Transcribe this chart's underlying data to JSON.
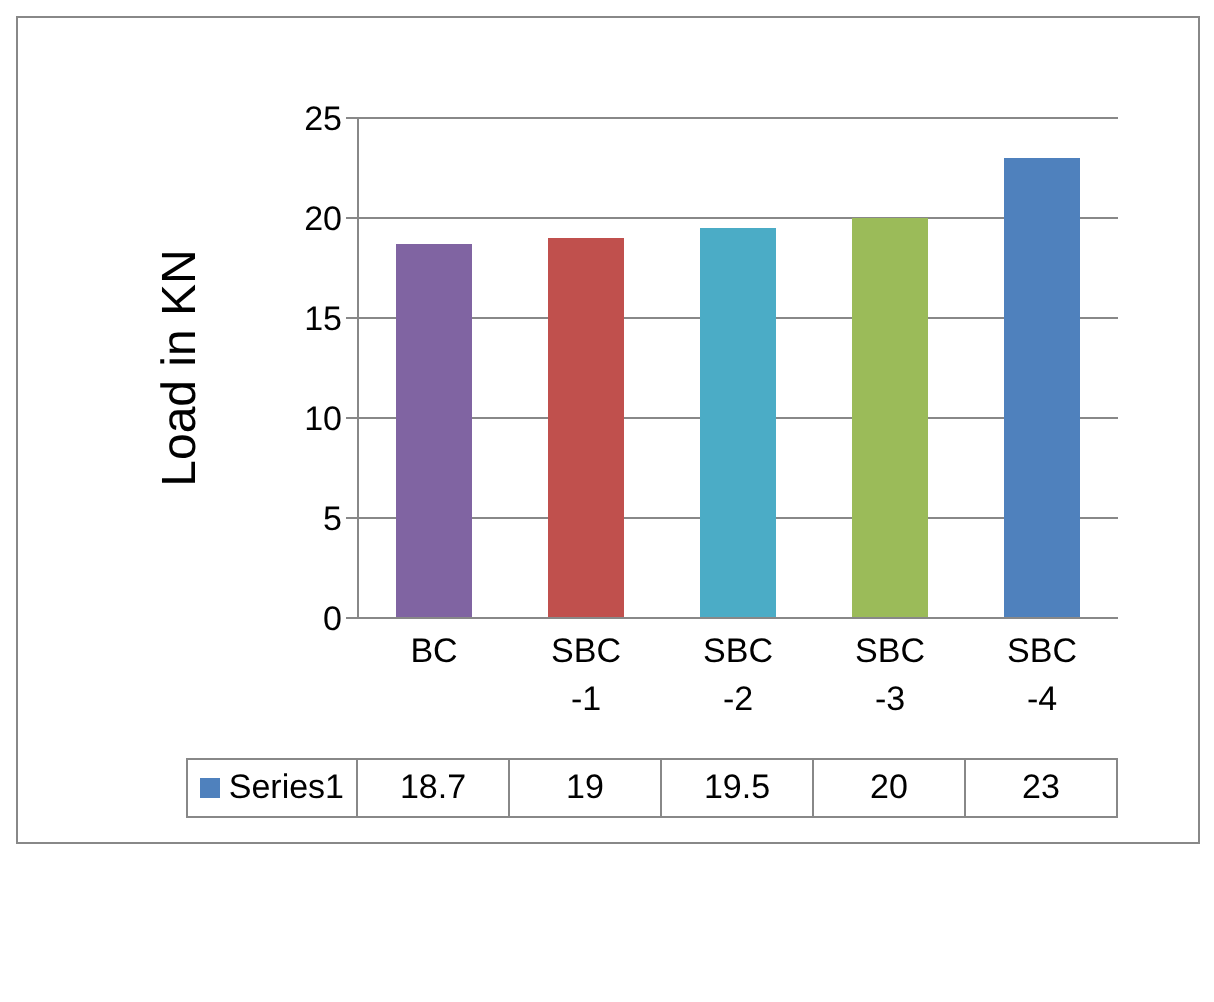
{
  "chart_data": {
    "type": "bar",
    "ylabel": "Load in KN",
    "categories": [
      "BC",
      "SBC-1",
      "SBC-2",
      "SBC-3",
      "SBC-4"
    ],
    "series": [
      {
        "name": "Series1",
        "color": "#4f81bd",
        "colors": [
          "#8064a2",
          "#c0504d",
          "#4bacc6",
          "#9bbb59",
          "#4f81bd"
        ],
        "values": [
          18.7,
          19,
          19.5,
          20,
          23
        ]
      }
    ],
    "ylim": [
      0,
      25
    ],
    "yticks": [
      0,
      5,
      10,
      15,
      20,
      25
    ],
    "grid": "y",
    "legend": "bottom",
    "data_labels": true
  }
}
